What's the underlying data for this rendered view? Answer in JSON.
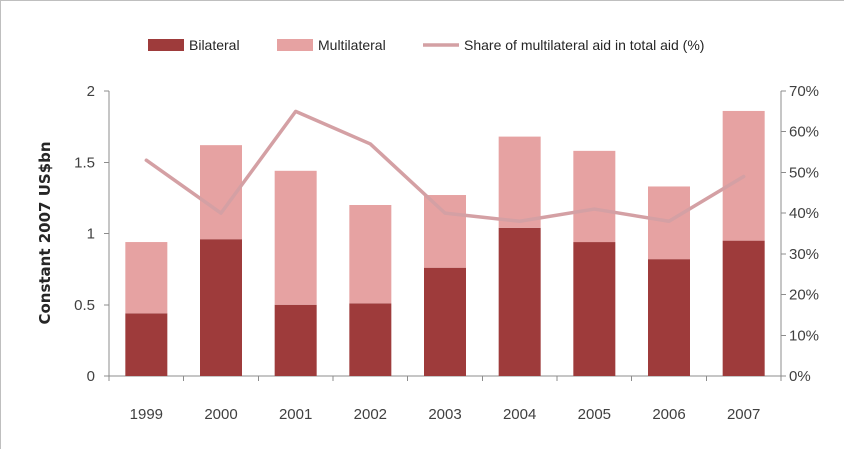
{
  "chart_data": {
    "type": "bar",
    "stacked": true,
    "categories": [
      "1999",
      "2000",
      "2001",
      "2002",
      "2003",
      "2004",
      "2005",
      "2006",
      "2007"
    ],
    "series": [
      {
        "name": "Bilateral",
        "type": "bar",
        "axis": "left",
        "color": "#9e3b3b",
        "values": [
          0.44,
          0.96,
          0.5,
          0.51,
          0.76,
          1.04,
          0.94,
          0.82,
          0.95
        ]
      },
      {
        "name": "Multilateral",
        "type": "bar",
        "axis": "left",
        "color": "#e6a2a2",
        "values": [
          0.5,
          0.66,
          0.94,
          0.69,
          0.51,
          0.64,
          0.64,
          0.51,
          0.91
        ]
      },
      {
        "name": "Share of multilateral  aid in total aid (%)",
        "type": "line",
        "axis": "right",
        "color": "#d4a0a4",
        "values": [
          53,
          40,
          65,
          57,
          40,
          38,
          41,
          38,
          49
        ]
      }
    ],
    "ylabel": "Constant 2007 US$bn",
    "ylim": [
      0,
      2
    ],
    "yticks": [
      0,
      0.5,
      1,
      1.5,
      2
    ],
    "ytick_labels": [
      "0",
      "0.5",
      "1",
      "1.5",
      "2"
    ],
    "y2lim": [
      0,
      70
    ],
    "y2ticks": [
      0,
      10,
      20,
      30,
      40,
      50,
      60,
      70
    ],
    "y2tick_labels": [
      "0%",
      "10%",
      "20%",
      "30%",
      "40%",
      "50%",
      "60%",
      "70%"
    ],
    "legend_position": "top",
    "grid": false
  }
}
